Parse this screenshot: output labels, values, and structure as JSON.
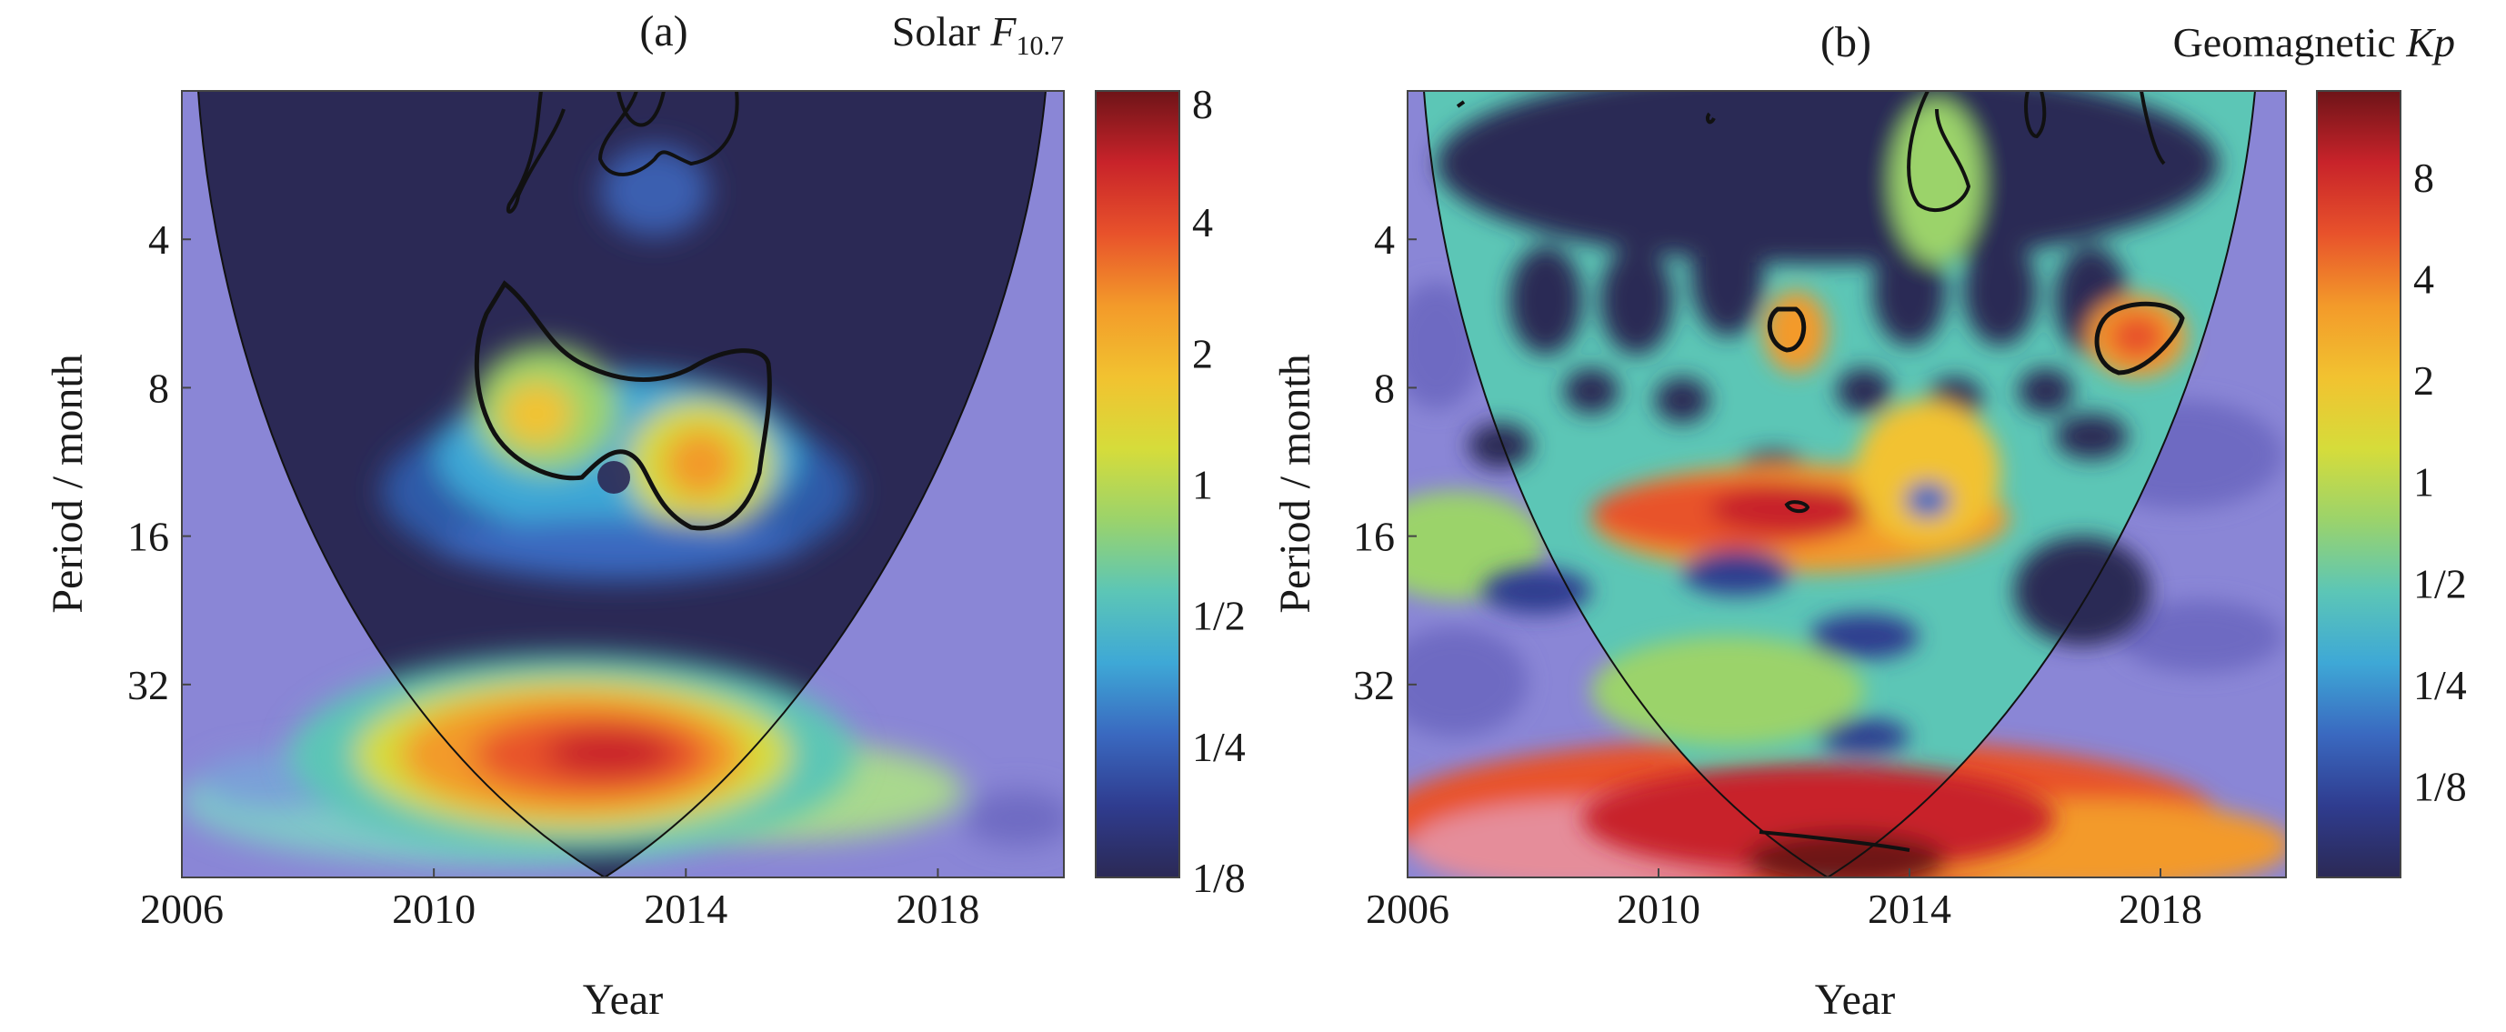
{
  "chart_data": [
    {
      "type": "heatmap",
      "panel_label": "(a)",
      "colorbar_title_prefix": "Solar ",
      "colorbar_title_var": "F",
      "colorbar_title_sub": "10.7",
      "xlabel": "Year",
      "ylabel": "Period / month",
      "x_ticks": [
        "2006",
        "2010",
        "2014",
        "2018"
      ],
      "x_tick_values": [
        2006,
        2010,
        2014,
        2018
      ],
      "xlim": [
        2006,
        2020
      ],
      "y_ticks": [
        "4",
        "8",
        "16",
        "32"
      ],
      "y_tick_values": [
        4,
        8,
        16,
        32
      ],
      "ylim_log2": [
        1.0,
        6.3
      ],
      "y_scale": "log2",
      "colorbar_ticks": [
        "8",
        "4",
        "2",
        "1",
        "1/2",
        "1/4",
        "1/8"
      ],
      "colorbar_values": [
        8,
        4,
        2,
        1,
        0.5,
        0.25,
        0.125
      ],
      "cone_of_influence": true,
      "significant_regions": [
        {
          "year_center": 2013.2,
          "period_center": 9.5
        },
        {
          "year_center": 2013.0,
          "period_center": 2.2
        }
      ],
      "power_maxima": [
        {
          "year": 2013.5,
          "period": 36,
          "power": 4
        },
        {
          "year": 2011.6,
          "period": 8.5,
          "power": 2
        },
        {
          "year": 2014.2,
          "period": 10.5,
          "power": 2
        }
      ]
    },
    {
      "type": "heatmap",
      "panel_label": "(b)",
      "colorbar_title_prefix": "Geomagnetic ",
      "colorbar_title_var": "Kp",
      "colorbar_title_sub": "",
      "xlabel": "Year",
      "ylabel": "Period / month",
      "x_ticks": [
        "2006",
        "2010",
        "2014",
        "2018"
      ],
      "x_tick_values": [
        2006,
        2010,
        2014,
        2018
      ],
      "xlim": [
        2006,
        2020
      ],
      "y_ticks": [
        "4",
        "8",
        "16",
        "32"
      ],
      "y_tick_values": [
        4,
        8,
        16,
        32
      ],
      "ylim_log2": [
        1.0,
        6.3
      ],
      "y_scale": "log2",
      "colorbar_ticks": [
        "8",
        "4",
        "2",
        "1",
        "1/2",
        "1/4",
        "1/8"
      ],
      "colorbar_values": [
        8,
        4,
        2,
        1,
        0.5,
        0.25,
        0.125
      ],
      "cone_of_influence": true,
      "significant_regions": [
        {
          "year_center": 2011.9,
          "period_center": 6.1
        },
        {
          "year_center": 2017.6,
          "period_center": 6.2
        },
        {
          "year_center": 2014.0,
          "period_center": 2.6
        },
        {
          "year_center": 2011.8,
          "period_center": 12.8
        },
        {
          "year_center": 2013.0,
          "period_center": 60
        }
      ],
      "power_maxima": [
        {
          "year": 2012.5,
          "period": 60,
          "power": 8
        },
        {
          "year": 2011.5,
          "period": 13,
          "power": 4
        },
        {
          "year": 2017.6,
          "period": 6.2,
          "power": 4
        }
      ]
    }
  ],
  "colors": {
    "cbar_stops": [
      "#2b2955",
      "#2f3c8f",
      "#3a69c0",
      "#3ea8d6",
      "#5cc6b6",
      "#9bd36b",
      "#d6dc3a",
      "#f2c230",
      "#f39a2a",
      "#e8522b",
      "#c8232a",
      "#6e1418"
    ],
    "outside_coi": "#8a86d6"
  }
}
